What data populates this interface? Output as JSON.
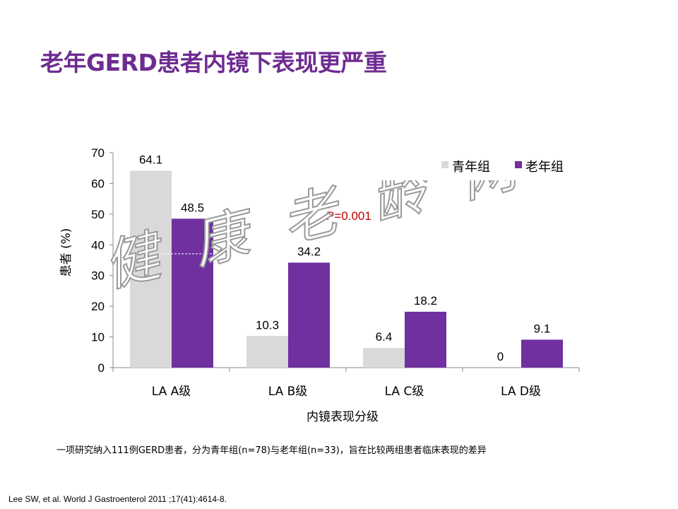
{
  "title": "老年GERD患者内镜下表现更严重",
  "chart_data": {
    "type": "bar",
    "categories": [
      "LA A级",
      "LA B级",
      "LA C级",
      "LA D级"
    ],
    "series": [
      {
        "name": "青年组",
        "values": [
          64.1,
          10.3,
          6.4,
          0
        ],
        "value_labels": [
          "64.1",
          "10.3",
          "6.4",
          "0"
        ],
        "color": "#d9d9d9"
      },
      {
        "name": "老年组",
        "values": [
          48.5,
          34.2,
          18.2,
          9.1
        ],
        "value_labels": [
          "48.5",
          "34.2",
          "18.2",
          "9.1"
        ],
        "color": "#7030a0"
      }
    ],
    "ylabel": "患者 (%)",
    "xlabel": "内镜表现分级",
    "ylim": [
      0,
      70
    ],
    "yticks": [
      "0",
      "10",
      "20",
      "30",
      "40",
      "50",
      "60",
      "70"
    ],
    "ytick_values": [
      0,
      10,
      20,
      30,
      40,
      50,
      60,
      70
    ],
    "legend_placement": "top-right",
    "grid": false,
    "annotation": {
      "text": "P=0.001",
      "color": "#c00000"
    }
  },
  "caption": "一项研究纳入111例GERD患者，分为青年组(n=78)与老年组(n=33)，旨在比较两组患者临床表现的差异",
  "reference": "Lee SW, et al. World J Gastroenterol 2011 ;17(41):4614-8.",
  "watermark_text": "健康老龄网"
}
